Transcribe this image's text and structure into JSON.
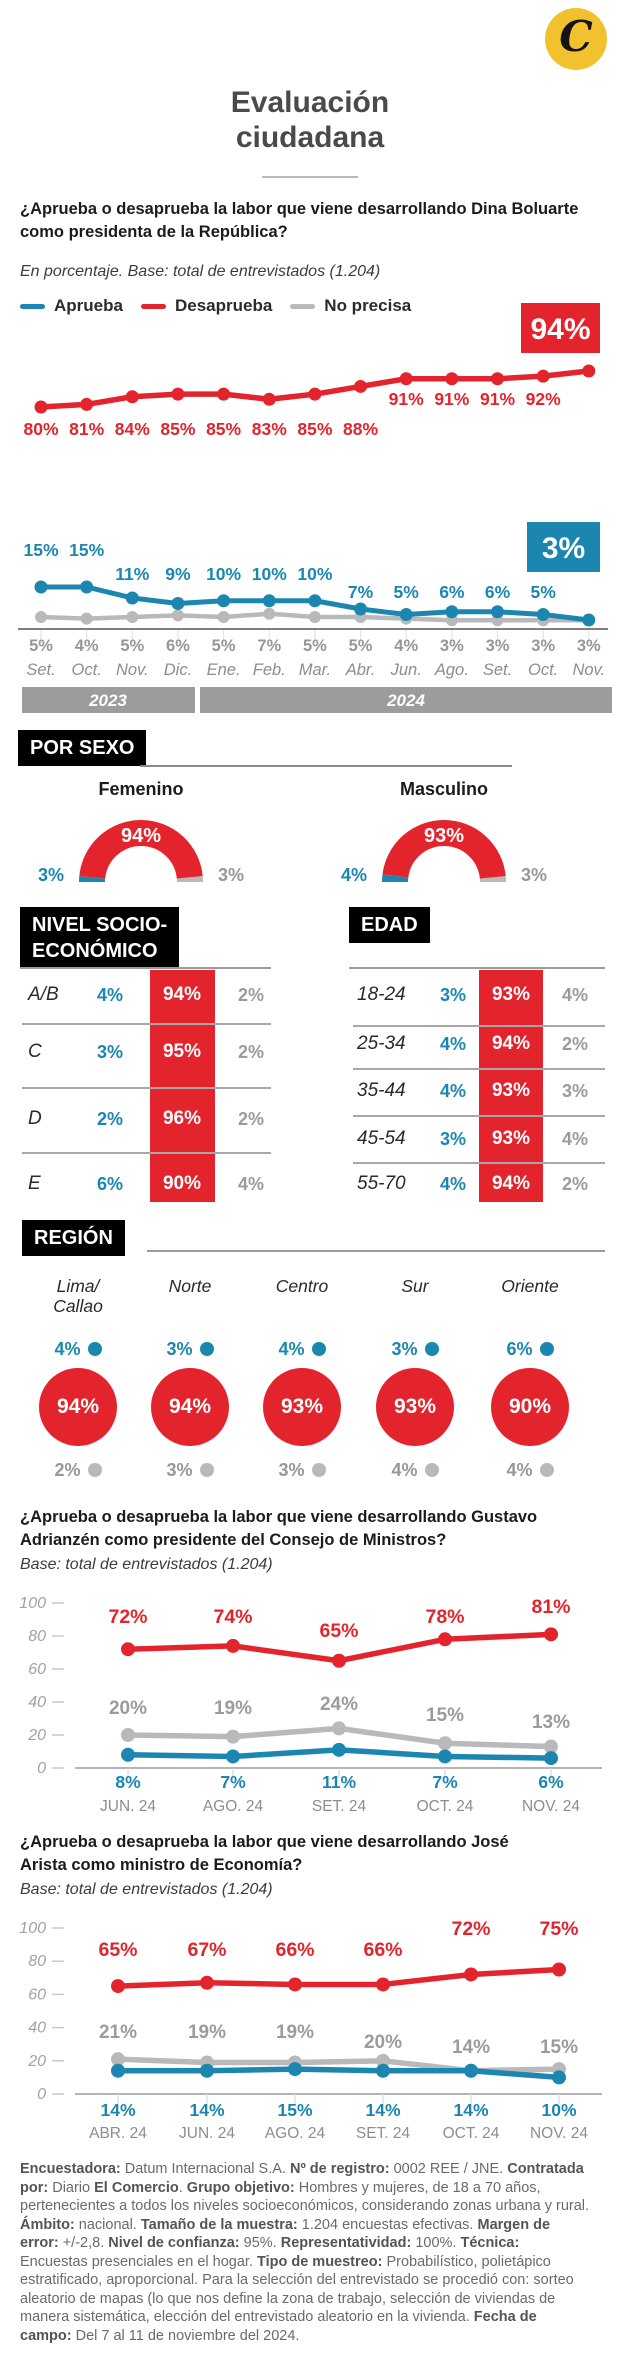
{
  "header": {
    "title_line1": "Evaluación",
    "title_line2": "ciudadana",
    "logo_letter": "C"
  },
  "colors": {
    "red": "#E3242C",
    "blue": "#1B87B1",
    "gray_line": "#B9B9BB",
    "gray_text": "#97979B",
    "month_text": "#8D8D90",
    "bar_gray": "#9C9C9E",
    "black": "#000000",
    "logo_yellow": "#F2C12E",
    "title_gray": "#4A4A4A",
    "axis": "#55555A"
  },
  "legend": {
    "items": [
      {
        "label": "Aprueba",
        "color": "#1B87B1"
      },
      {
        "label": "Desaprueba",
        "color": "#E3242C"
      },
      {
        "label": "No precisa",
        "color": "#B9B9BB"
      }
    ]
  },
  "sections": {
    "por_sexo": "POR SEXO",
    "nse_line1": "NIVEL SOCIO-",
    "nse_line2": "ECONÓMICO",
    "edad": "EDAD",
    "region": "REGIÓN"
  },
  "chart_data": [
    {
      "id": "boluarte",
      "type": "line",
      "title_line1": "¿Aprueba o desaprueba la labor que viene desarrollando Dina Boluarte",
      "title_line2": "como presidenta de la República?",
      "subtitle": "En porcentaje. Base: total de entrevistados (1.204)",
      "categories": [
        "Set.",
        "Oct.",
        "Nov.",
        "Dic.",
        "Ene.",
        "Feb.",
        "Mar.",
        "Abr.",
        "Jun.",
        "Ago.",
        "Set.",
        "Oct.",
        "Nov."
      ],
      "year_bands": [
        {
          "label": "2023",
          "span": 4
        },
        {
          "label": "2024",
          "span": 9
        }
      ],
      "series": [
        {
          "name": "Desaprueba",
          "color": "#E3242C",
          "values": [
            80,
            81,
            84,
            85,
            85,
            83,
            85,
            88,
            91,
            91,
            91,
            92,
            94
          ]
        },
        {
          "name": "Aprueba",
          "color": "#1B87B1",
          "values": [
            15,
            15,
            11,
            9,
            10,
            10,
            10,
            7,
            5,
            6,
            6,
            5,
            3
          ]
        },
        {
          "name": "No precisa",
          "color": "#B9B9BB",
          "values": [
            5,
            4,
            5,
            6,
            5,
            7,
            5,
            5,
            4,
            3,
            3,
            3,
            3
          ]
        }
      ],
      "highlight_desaprueba": "94%",
      "highlight_aprueba": "3%"
    },
    {
      "id": "por_sexo_gauges",
      "type": "pie",
      "gauges": [
        {
          "label": "Femenino",
          "aprueba": 3,
          "desaprueba": 94,
          "no_precisa": 3
        },
        {
          "label": "Masculino",
          "aprueba": 4,
          "desaprueba": 93,
          "no_precisa": 3
        }
      ]
    },
    {
      "id": "nse",
      "type": "table",
      "rows": [
        {
          "label": "A/B",
          "aprueba": 4,
          "desaprueba": 94,
          "no_precisa": 2
        },
        {
          "label": "C",
          "aprueba": 3,
          "desaprueba": 95,
          "no_precisa": 2
        },
        {
          "label": "D",
          "aprueba": 2,
          "desaprueba": 96,
          "no_precisa": 2
        },
        {
          "label": "E",
          "aprueba": 6,
          "desaprueba": 90,
          "no_precisa": 4
        }
      ]
    },
    {
      "id": "edad",
      "type": "table",
      "rows": [
        {
          "label": "18-24",
          "aprueba": 3,
          "desaprueba": 93,
          "no_precisa": 4
        },
        {
          "label": "25-34",
          "aprueba": 4,
          "desaprueba": 94,
          "no_precisa": 2
        },
        {
          "label": "35-44",
          "aprueba": 4,
          "desaprueba": 93,
          "no_precisa": 3
        },
        {
          "label": "45-54",
          "aprueba": 3,
          "desaprueba": 93,
          "no_precisa": 4
        },
        {
          "label": "55-70",
          "aprueba": 4,
          "desaprueba": 94,
          "no_precisa": 2
        }
      ]
    },
    {
      "id": "region",
      "type": "pie",
      "columns": [
        {
          "label1": "Lima/",
          "label2": "Callao",
          "aprueba": 4,
          "desaprueba": 94,
          "no_precisa": 2
        },
        {
          "label1": "Norte",
          "label2": "",
          "aprueba": 3,
          "desaprueba": 94,
          "no_precisa": 3
        },
        {
          "label1": "Centro",
          "label2": "",
          "aprueba": 4,
          "desaprueba": 93,
          "no_precisa": 3
        },
        {
          "label1": "Sur",
          "label2": "",
          "aprueba": 3,
          "desaprueba": 93,
          "no_precisa": 4
        },
        {
          "label1": "Oriente",
          "label2": "",
          "aprueba": 6,
          "desaprueba": 90,
          "no_precisa": 4
        }
      ]
    },
    {
      "id": "adrianzen",
      "type": "line",
      "title_line1": "¿Aprueba o desaprueba la labor que viene desarrollando Gustavo",
      "title_line2": "Adrianzén como presidente del Consejo de Ministros?",
      "subtitle": "Base: total de entrevistados (1.204)",
      "categories": [
        "JUN. 24",
        "AGO. 24",
        "SET. 24",
        "OCT. 24",
        "NOV. 24"
      ],
      "yticks": [
        100,
        80,
        60,
        40,
        20,
        0
      ],
      "ylim": [
        0,
        100
      ],
      "series": [
        {
          "name": "Desaprueba",
          "color": "#E3242C",
          "values": [
            72,
            74,
            65,
            78,
            81
          ]
        },
        {
          "name": "No precisa",
          "color": "#B9B9BB",
          "values": [
            20,
            19,
            24,
            15,
            13
          ]
        },
        {
          "name": "Aprueba",
          "color": "#1B87B1",
          "values": [
            8,
            7,
            11,
            7,
            6
          ]
        }
      ]
    },
    {
      "id": "arista",
      "type": "line",
      "title_line1": "¿Aprueba o desaprueba la labor que viene desarrollando José",
      "title_line2": "Arista como ministro de Economía?",
      "subtitle": "Base: total de entrevistados (1.204)",
      "categories": [
        "ABR. 24",
        "JUN. 24",
        "AGO. 24",
        "SET. 24",
        "OCT. 24",
        "NOV. 24"
      ],
      "yticks": [
        100,
        80,
        60,
        40,
        20,
        0
      ],
      "ylim": [
        0,
        100
      ],
      "series": [
        {
          "name": "Desaprueba",
          "color": "#E3242C",
          "values": [
            65,
            67,
            66,
            66,
            72,
            75
          ]
        },
        {
          "name": "No precisa",
          "color": "#B9B9BB",
          "values": [
            21,
            19,
            19,
            20,
            14,
            15
          ]
        },
        {
          "name": "Aprueba",
          "color": "#1B87B1",
          "values": [
            14,
            14,
            15,
            14,
            14,
            10
          ]
        }
      ]
    }
  ],
  "footer": {
    "segments": [
      {
        "b": 1,
        "t": "Encuestadora: "
      },
      {
        "b": 0,
        "t": "Datum Internacional S.A. "
      },
      {
        "b": 1,
        "t": "Nº de registro: "
      },
      {
        "b": 0,
        "t": "0002 REE / JNE. "
      },
      {
        "b": 1,
        "t": "Contratada por: "
      },
      {
        "b": 0,
        "t": "Diario "
      },
      {
        "b": 1,
        "t": "El Comercio"
      },
      {
        "b": 0,
        "t": ". "
      },
      {
        "b": 1,
        "t": "Grupo objetivo: "
      },
      {
        "b": 0,
        "t": "Hombres y mujeres, de 18 a 70 años, pertenecientes a todos los niveles socioeconómicos, considerando zonas urbana y rural. "
      },
      {
        "b": 1,
        "t": "Ámbito: "
      },
      {
        "b": 0,
        "t": "nacional. "
      },
      {
        "b": 1,
        "t": "Tamaño de la muestra: "
      },
      {
        "b": 0,
        "t": "1.204 encuestas efectivas. "
      },
      {
        "b": 1,
        "t": "Margen de error: "
      },
      {
        "b": 0,
        "t": "+/-2,8. "
      },
      {
        "b": 1,
        "t": "Nivel de confianza: "
      },
      {
        "b": 0,
        "t": "95%. "
      },
      {
        "b": 1,
        "t": "Representatividad: "
      },
      {
        "b": 0,
        "t": "100%. "
      },
      {
        "b": 1,
        "t": "Técnica: "
      },
      {
        "b": 0,
        "t": "Encuestas presenciales en el hogar. "
      },
      {
        "b": 1,
        "t": "Tipo de muestreo: "
      },
      {
        "b": 0,
        "t": "Probabilístico, polietápico estratificado, aproporcional. Para la selección del entrevistado se procedió con: sorteo aleatorio de mapas (lo que nos define la zona de trabajo, selección de viviendas de manera sistemática, elección del entrevistado aleatorio en la vivienda. "
      },
      {
        "b": 1,
        "t": "Fecha de campo: "
      },
      {
        "b": 0,
        "t": "Del 7 al 11 de noviembre del 2024."
      }
    ]
  }
}
